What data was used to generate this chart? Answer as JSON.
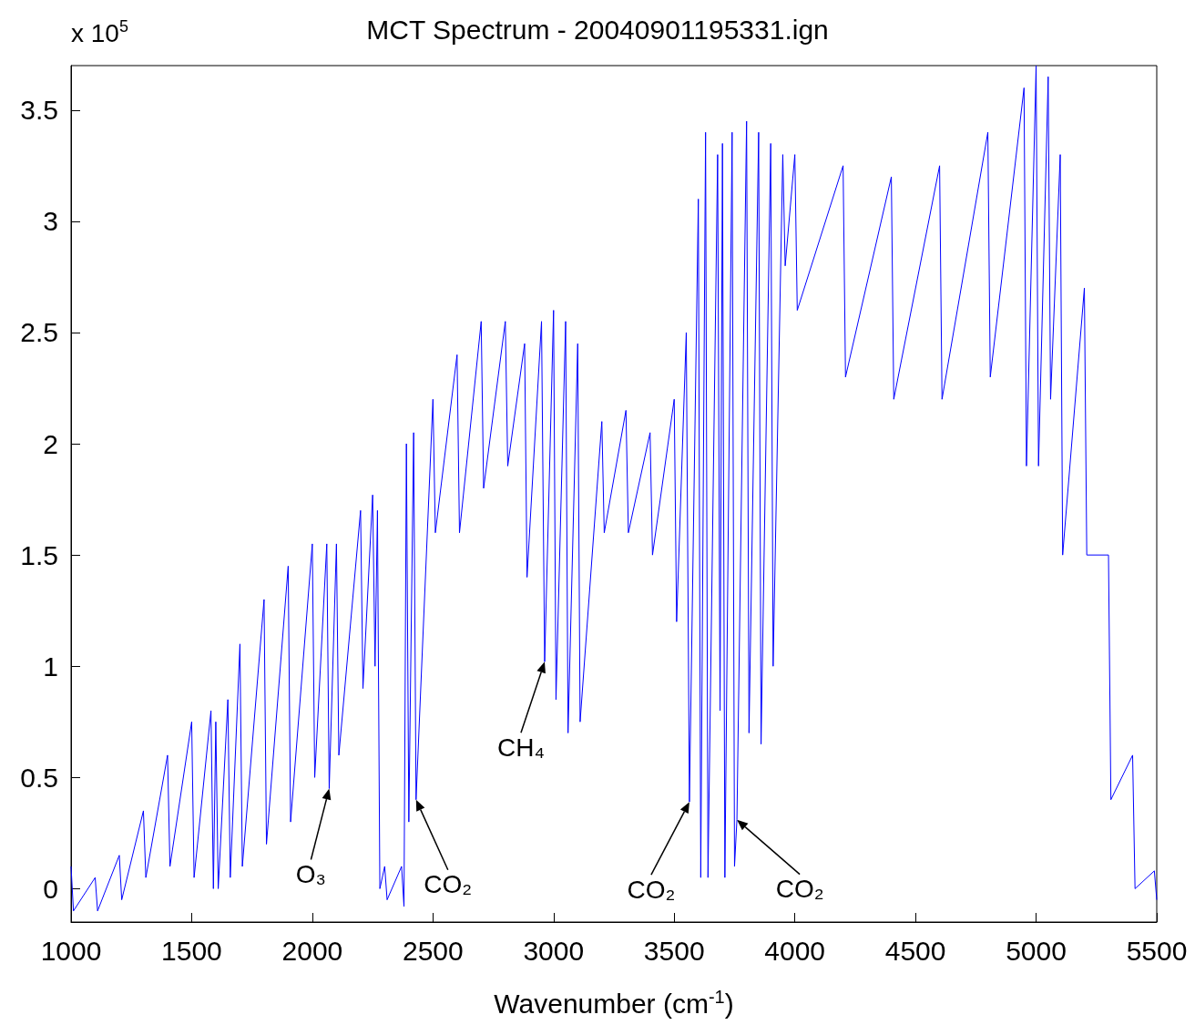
{
  "chart_data": {
    "type": "line",
    "title": "MCT Spectrum - 20040901195331.ign",
    "xlabel": "Wavenumber (cm$^{-1}$)",
    "annotations": [
      "x 10$^{5}$",
      {
        "text": "O₃",
        "x": 2070,
        "y": 0.45
      },
      {
        "text": "CO₂",
        "x": 2430,
        "y": 0.4
      },
      {
        "text": "CH₄",
        "x": 2963,
        "y": 1.02
      },
      {
        "text": "CO₂",
        "x": 3563,
        "y": 0.39
      },
      {
        "text": "CO₂",
        "x": 3760,
        "y": 0.31
      }
    ],
    "series": [
      {
        "color": "#0000ff",
        "x": [
          1000,
          1010,
          1100,
          1110,
          1200,
          1210,
          1300,
          1310,
          1400,
          1410,
          1500,
          1510,
          1580,
          1590,
          1600,
          1610,
          1650,
          1660,
          1700,
          1710,
          1800,
          1810,
          1900,
          1910,
          2000,
          2010,
          2060,
          2070,
          2100,
          2110,
          2200,
          2210,
          2250,
          2260,
          2270,
          2280,
          2300,
          2310,
          2370,
          2380,
          2390,
          2400,
          2420,
          2430,
          2500,
          2510,
          2600,
          2610,
          2700,
          2710,
          2800,
          2810,
          2880,
          2890,
          2950,
          2963,
          3000,
          3010,
          3050,
          3060,
          3100,
          3110,
          3200,
          3210,
          3300,
          3310,
          3400,
          3410,
          3500,
          3510,
          3550,
          3563,
          3600,
          3610,
          3630,
          3640,
          3680,
          3690,
          3700,
          3710,
          3740,
          3750,
          3760,
          3800,
          3810,
          3850,
          3860,
          3900,
          3910,
          3950,
          3960,
          4000,
          4010,
          4200,
          4210,
          4400,
          4410,
          4600,
          4610,
          4800,
          4810,
          4950,
          4960,
          5000,
          5010,
          5050,
          5060,
          5100,
          5110,
          5200,
          5210,
          5300,
          5310,
          5400,
          5410,
          5490,
          5500
        ],
        "values": [
          0.1,
          -0.1,
          0.05,
          -0.1,
          0.15,
          -0.05,
          0.35,
          0.05,
          0.6,
          0.1,
          0.75,
          0.05,
          0.8,
          0.0,
          0.75,
          0.0,
          0.85,
          0.05,
          1.1,
          0.1,
          1.3,
          0.2,
          1.45,
          0.3,
          1.55,
          0.5,
          1.55,
          0.45,
          1.55,
          0.6,
          1.7,
          0.9,
          1.77,
          1.0,
          1.7,
          0.0,
          0.1,
          -0.05,
          0.1,
          -0.08,
          2.0,
          0.3,
          2.05,
          0.4,
          2.2,
          1.6,
          2.4,
          1.6,
          2.55,
          1.8,
          2.55,
          1.9,
          2.45,
          1.4,
          2.55,
          1.02,
          2.6,
          0.85,
          2.55,
          0.7,
          2.45,
          0.75,
          2.1,
          1.6,
          2.15,
          1.6,
          2.05,
          1.5,
          2.2,
          1.2,
          2.5,
          0.39,
          3.1,
          0.05,
          3.4,
          0.05,
          3.3,
          0.8,
          3.35,
          0.05,
          3.4,
          0.1,
          0.31,
          3.45,
          0.7,
          3.4,
          0.65,
          3.35,
          1.0,
          3.3,
          2.8,
          3.3,
          2.6,
          3.25,
          2.3,
          3.2,
          2.2,
          3.25,
          2.2,
          3.4,
          2.3,
          3.6,
          1.9,
          3.7,
          1.9,
          3.65,
          2.2,
          3.3,
          1.5,
          2.7,
          1.5,
          1.5,
          0.4,
          0.6,
          0.0,
          0.08,
          -0.05
        ]
      }
    ],
    "xlim": [
      1000,
      5500
    ],
    "xticks": [
      1000,
      1500,
      2000,
      2500,
      3000,
      3500,
      4000,
      4500,
      5000,
      5500
    ],
    "ylim": [
      -0.15,
      3.7
    ],
    "yticks": [
      0,
      0.5,
      1,
      1.5,
      2,
      2.5,
      3,
      3.5
    ],
    "marker": "none",
    "line_style": "solid"
  }
}
